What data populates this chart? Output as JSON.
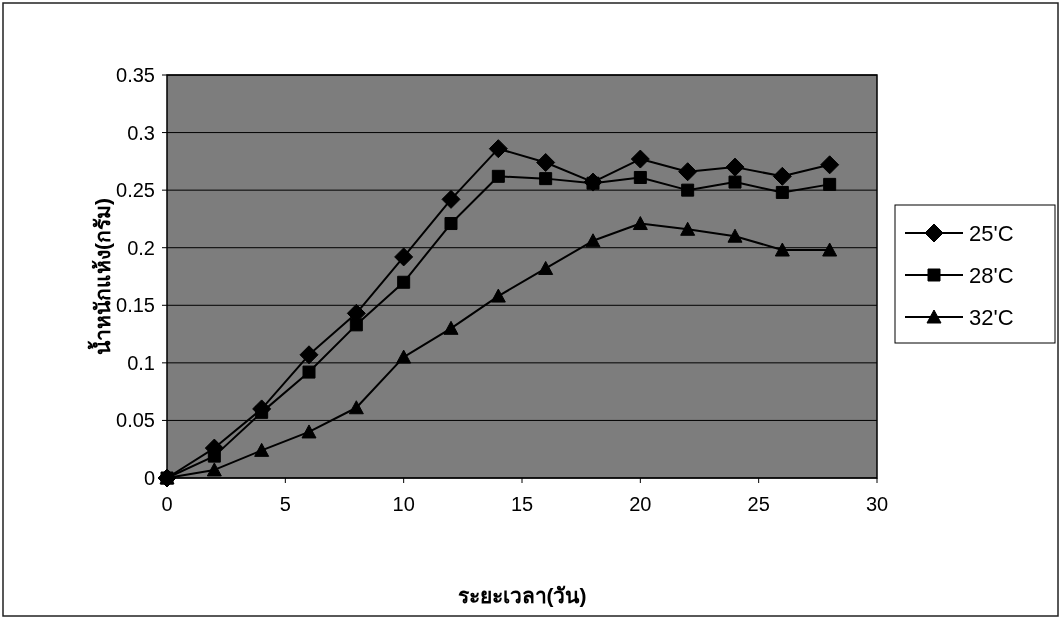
{
  "chart_data": {
    "type": "line",
    "xlabel": "ระยะเวลา(วัน)",
    "ylabel": "น้ำหนักแห้ง(กรัม)",
    "x": [
      0,
      2,
      4,
      6,
      8,
      10,
      12,
      14,
      16,
      18,
      20,
      22,
      24,
      26,
      28
    ],
    "series": [
      {
        "name": "25'C",
        "color": "#000000",
        "marker": "diamond",
        "values": [
          0,
          0.026,
          0.06,
          0.107,
          0.143,
          0.192,
          0.242,
          0.286,
          0.274,
          0.257,
          0.277,
          0.266,
          0.27,
          0.262,
          0.272
        ]
      },
      {
        "name": "28'C",
        "color": "#000000",
        "marker": "square",
        "values": [
          0,
          0.019,
          0.057,
          0.092,
          0.133,
          0.17,
          0.221,
          0.262,
          0.26,
          0.256,
          0.261,
          0.25,
          0.257,
          0.248,
          0.255
        ]
      },
      {
        "name": "32'C",
        "color": "#000000",
        "marker": "triangle",
        "values": [
          0,
          0.007,
          0.024,
          0.04,
          0.061,
          0.105,
          0.13,
          0.158,
          0.182,
          0.206,
          0.221,
          0.216,
          0.21,
          0.198,
          0.198
        ]
      }
    ],
    "xlim": [
      0,
      30
    ],
    "ylim": [
      0,
      0.35
    ],
    "xticks": [
      0,
      5,
      10,
      15,
      20,
      25,
      30
    ],
    "yticks": [
      0,
      0.05,
      0.1,
      0.15,
      0.2,
      0.25,
      0.3,
      0.35
    ],
    "grid": "y",
    "legend": "right",
    "line_style": "solid"
  }
}
